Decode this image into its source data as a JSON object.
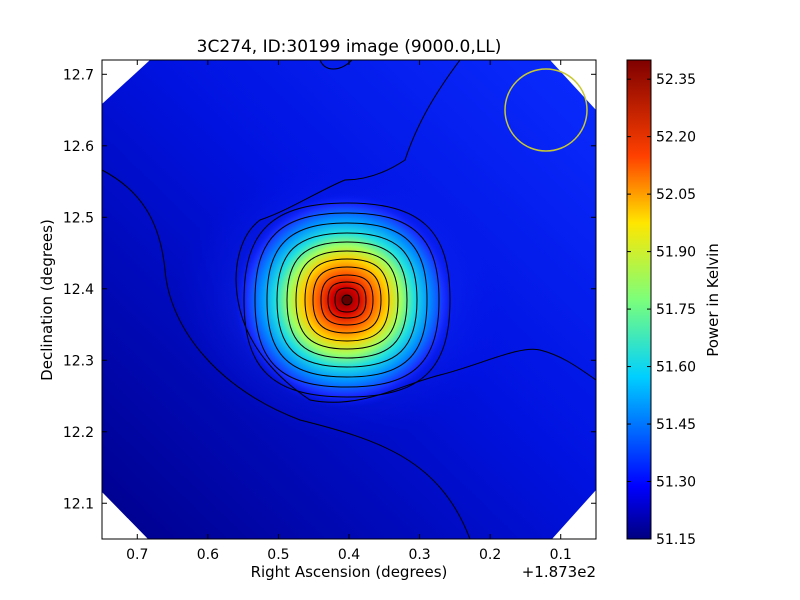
{
  "chart_data": {
    "type": "heatmap",
    "title": "3C274, ID:30199 image (9000.0,LL)",
    "xlabel": "Right Ascension (degrees)",
    "ylabel": "Declination (degrees)",
    "x_offset_label": "+1.873e2",
    "xlim": [
      0.75,
      0.05
    ],
    "ylim": [
      12.05,
      12.72
    ],
    "x_ticks": [
      0.7,
      0.6,
      0.5,
      0.4,
      0.3,
      0.2,
      0.1
    ],
    "x_tick_labels": [
      "0.7",
      "0.6",
      "0.5",
      "0.4",
      "0.3",
      "0.2",
      "0.1"
    ],
    "y_ticks": [
      12.1,
      12.2,
      12.3,
      12.4,
      12.5,
      12.6,
      12.7
    ],
    "y_tick_labels": [
      "12.1",
      "12.2",
      "12.3",
      "12.4",
      "12.5",
      "12.6",
      "12.7"
    ],
    "grid": false,
    "colormap": "jet",
    "peak": {
      "ra": 0.405,
      "dec": 12.385,
      "value": 52.39
    },
    "background_level": 51.3,
    "min_level": 51.15,
    "beam_marker": {
      "ra": 0.13,
      "dec": 12.655,
      "radius_deg": 0.057,
      "color": "#c8c832"
    },
    "colorbar": {
      "label": "Power in Kelvin",
      "range": [
        51.15,
        52.4
      ],
      "ticks": [
        52.35,
        52.2,
        52.05,
        51.9,
        51.75,
        51.6,
        51.45,
        51.3,
        51.15
      ],
      "tick_labels": [
        "52.35",
        "52.20",
        "52.05",
        "51.90",
        "51.75",
        "51.60",
        "51.45",
        "51.30",
        "51.15"
      ]
    }
  }
}
